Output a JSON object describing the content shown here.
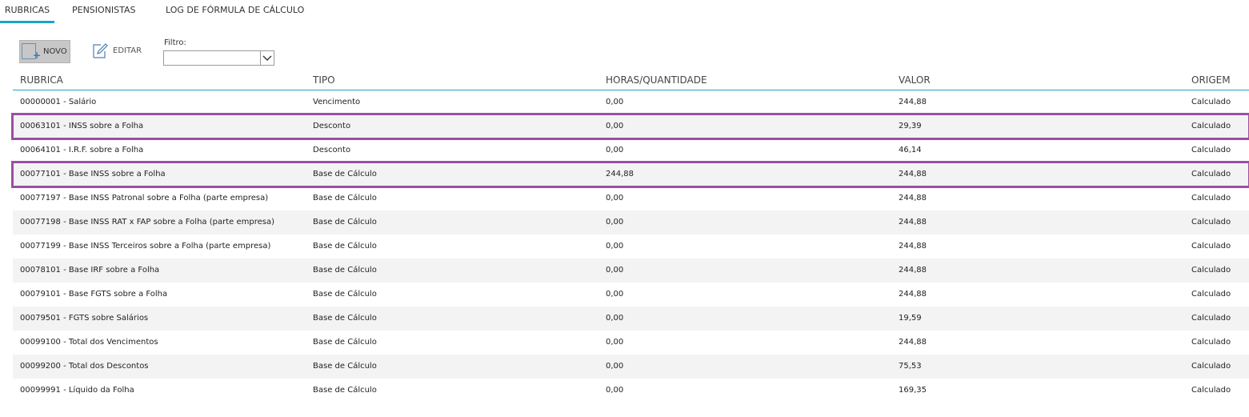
{
  "tabs": [
    {
      "label": "RUBRICAS",
      "active": true
    },
    {
      "label": "PENSIONISTAS",
      "active": false
    },
    {
      "label": "LOG DE FÓRMULA DE CÁLCULO",
      "active": false
    }
  ],
  "toolbar": {
    "novo_label": "NOVO",
    "editar_label": "EDITAR",
    "filtro_label": "Filtro:",
    "filtro_value": ""
  },
  "grid": {
    "headers": [
      "RUBRICA",
      "TIPO",
      "HORAS/QUANTIDADE",
      "VALOR",
      "ORIGEM"
    ],
    "rows": [
      {
        "rubrica": "00000001 - Salário",
        "tipo": "Vencimento",
        "horas": "0,00",
        "valor": "244,88",
        "origem": "Calculado"
      },
      {
        "rubrica": "00063101 - INSS sobre a Folha",
        "tipo": "Desconto",
        "horas": "0,00",
        "valor": "29,39",
        "origem": "Calculado"
      },
      {
        "rubrica": "00064101 - I.R.F. sobre a Folha",
        "tipo": "Desconto",
        "horas": "0,00",
        "valor": "46,14",
        "origem": "Calculado"
      },
      {
        "rubrica": "00077101 - Base INSS sobre a Folha",
        "tipo": "Base de Cálculo",
        "horas": "244,88",
        "valor": "244,88",
        "origem": "Calculado"
      },
      {
        "rubrica": "00077197 - Base INSS Patronal sobre a Folha (parte empresa)",
        "tipo": "Base de Cálculo",
        "horas": "0,00",
        "valor": "244,88",
        "origem": "Calculado"
      },
      {
        "rubrica": "00077198 - Base INSS RAT x FAP sobre a Folha (parte empresa)",
        "tipo": "Base de Cálculo",
        "horas": "0,00",
        "valor": "244,88",
        "origem": "Calculado"
      },
      {
        "rubrica": "00077199 - Base INSS Terceiros sobre a Folha (parte empresa)",
        "tipo": "Base de Cálculo",
        "horas": "0,00",
        "valor": "244,88",
        "origem": "Calculado"
      },
      {
        "rubrica": "00078101 - Base IRF sobre a Folha",
        "tipo": "Base de Cálculo",
        "horas": "0,00",
        "valor": "244,88",
        "origem": "Calculado"
      },
      {
        "rubrica": "00079101 - Base FGTS sobre a Folha",
        "tipo": "Base de Cálculo",
        "horas": "0,00",
        "valor": "244,88",
        "origem": "Calculado"
      },
      {
        "rubrica": "00079501 - FGTS sobre Salários",
        "tipo": "Base de Cálculo",
        "horas": "0,00",
        "valor": "19,59",
        "origem": "Calculado"
      },
      {
        "rubrica": "00099100 - Total dos Vencimentos",
        "tipo": "Base de Cálculo",
        "horas": "0,00",
        "valor": "244,88",
        "origem": "Calculado"
      },
      {
        "rubrica": "00099200 - Total dos Descontos",
        "tipo": "Base de Cálculo",
        "horas": "0,00",
        "valor": "75,53",
        "origem": "Calculado"
      },
      {
        "rubrica": "00099991 - Líquido da Folha",
        "tipo": "Base de Cálculo",
        "horas": "0,00",
        "valor": "169,35",
        "origem": "Calculado"
      }
    ]
  },
  "colors": {
    "accent": "#1aa3c8",
    "highlight_border": "#9b4fa3",
    "row_alt": "#f3f3f3"
  }
}
